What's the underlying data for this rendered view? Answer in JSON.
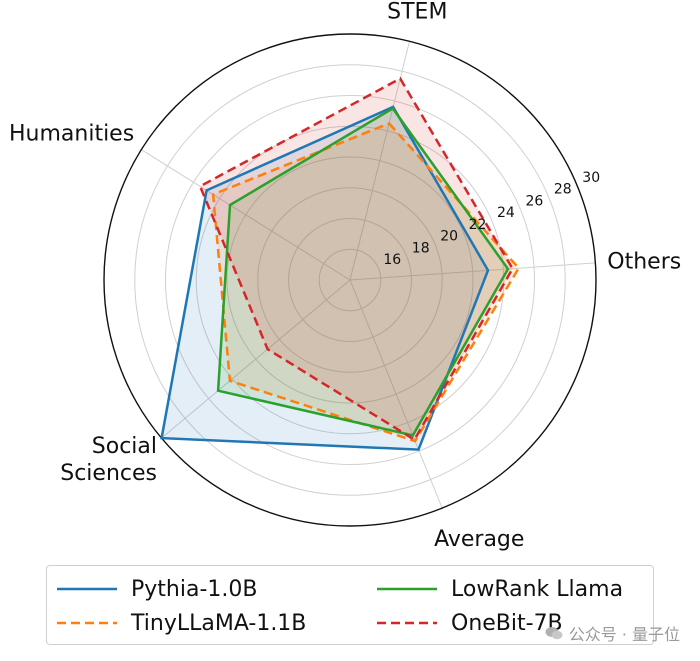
{
  "chart_data": {
    "type": "radar",
    "axes": [
      "STEM",
      "Others",
      "Average",
      "Social Sciences",
      "Humanities"
    ],
    "axis_label_lines": {
      "STEM": [
        "STEM"
      ],
      "Others": [
        "Others"
      ],
      "Average": [
        "Average"
      ],
      "Social Sciences": [
        "Social",
        "Sciences"
      ],
      "Humanities": [
        "Humanities"
      ]
    },
    "rmin": 14,
    "rmax": 30,
    "ticks": [
      16,
      18,
      20,
      22,
      24,
      26,
      28,
      30
    ],
    "series": [
      {
        "name": "Pythia-1.0B",
        "color": "#1f77b4",
        "dash": "solid",
        "fill_opacity": 0.12,
        "values": [
          25.6,
          23.0,
          25.9,
          30.0,
          25.0
        ]
      },
      {
        "name": "TinyLLaMA-1.1B",
        "color": "#ff7f0e",
        "dash": "dashed",
        "fill_opacity": 0.12,
        "values": [
          24.5,
          25.0,
          25.3,
          24.2,
          24.5
        ]
      },
      {
        "name": "LowRank Llama",
        "color": "#2ca02c",
        "dash": "solid",
        "fill_opacity": 0.12,
        "values": [
          25.5,
          24.3,
          24.9,
          25.2,
          23.2
        ]
      },
      {
        "name": "OneBit-7B",
        "color": "#d62728",
        "dash": "dashed",
        "fill_opacity": 0.12,
        "values": [
          27.5,
          24.6,
          25.2,
          21.0,
          25.5
        ]
      }
    ],
    "grid": true,
    "legend_position": "bottom"
  },
  "watermark": {
    "text": "公众号 · 量子位",
    "icon": "wechat-icon"
  }
}
